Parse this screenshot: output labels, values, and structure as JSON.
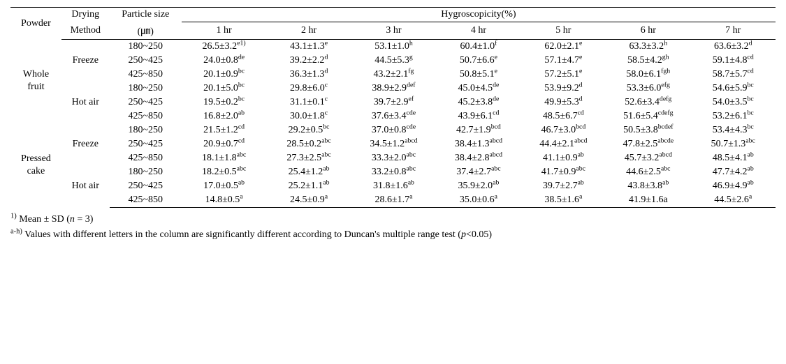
{
  "header": {
    "powder": "Powder",
    "drying": "Drying",
    "method": "Method",
    "particle": "Particle size",
    "particle_unit": "(㎛)",
    "hygro": "Hygroscopicity(%)",
    "hrs": [
      "1 hr",
      "2 hr",
      "3 hr",
      "4 hr",
      "5 hr",
      "6 hr",
      "7 hr"
    ]
  },
  "groups": [
    {
      "powder": "Whole fruit",
      "methods": [
        {
          "name": "Freeze",
          "rows": [
            {
              "size": "180~250",
              "v": [
                {
                  "m": "26.5±3.2",
                  "s": "e1)"
                },
                {
                  "m": "43.1±1.3",
                  "s": "e"
                },
                {
                  "m": "53.1±1.0",
                  "s": "h"
                },
                {
                  "m": "60.4±1.0",
                  "s": "f"
                },
                {
                  "m": "62.0±2.1",
                  "s": "e"
                },
                {
                  "m": "63.3±3.2",
                  "s": "h"
                },
                {
                  "m": "63.6±3.2",
                  "s": "d"
                }
              ]
            },
            {
              "size": "250~425",
              "v": [
                {
                  "m": "24.0±0.8",
                  "s": "de"
                },
                {
                  "m": "39.2±2.2",
                  "s": "d"
                },
                {
                  "m": "44.5±5.3",
                  "s": "g"
                },
                {
                  "m": "50.7±6.6",
                  "s": "e"
                },
                {
                  "m": "57.1±4.7",
                  "s": "e"
                },
                {
                  "m": "58.5±4.2",
                  "s": "gh"
                },
                {
                  "m": "59.1±4.8",
                  "s": "cd"
                }
              ]
            },
            {
              "size": "425~850",
              "v": [
                {
                  "m": "20.1±0.9",
                  "s": "bc"
                },
                {
                  "m": "36.3±1.3",
                  "s": "d"
                },
                {
                  "m": "43.2±2.1",
                  "s": "fg"
                },
                {
                  "m": "50.8±5.1",
                  "s": "e"
                },
                {
                  "m": "57.2±5.1",
                  "s": "e"
                },
                {
                  "m": "58.0±6.1",
                  "s": "fgh"
                },
                {
                  "m": "58.7±5.7",
                  "s": "cd"
                }
              ]
            }
          ]
        },
        {
          "name": "Hot air",
          "rows": [
            {
              "size": "180~250",
              "v": [
                {
                  "m": "20.1±5.0",
                  "s": "bc"
                },
                {
                  "m": "29.8±6.0",
                  "s": "c"
                },
                {
                  "m": "38.9±2.9",
                  "s": "def"
                },
                {
                  "m": "45.0±4.5",
                  "s": "de"
                },
                {
                  "m": "53.9±9.2",
                  "s": "d"
                },
                {
                  "m": "53.3±6.0",
                  "s": "efg"
                },
                {
                  "m": "54.6±5.9",
                  "s": "bc"
                }
              ]
            },
            {
              "size": "250~425",
              "v": [
                {
                  "m": "19.5±0.2",
                  "s": "bc"
                },
                {
                  "m": "31.1±0.1",
                  "s": "c"
                },
                {
                  "m": "39.7±2.9",
                  "s": "ef"
                },
                {
                  "m": "45.2±3.8",
                  "s": "de"
                },
                {
                  "m": "49.9±5.3",
                  "s": "d"
                },
                {
                  "m": "52.6±3.4",
                  "s": "defg"
                },
                {
                  "m": "54.0±3.5",
                  "s": "bc"
                }
              ]
            },
            {
              "size": "425~850",
              "v": [
                {
                  "m": "16.8±2.0",
                  "s": "ab"
                },
                {
                  "m": "30.0±1.8",
                  "s": "c"
                },
                {
                  "m": "37.6±3.4",
                  "s": "cde"
                },
                {
                  "m": "43.9±6.1",
                  "s": "cd"
                },
                {
                  "m": "48.5±6.7",
                  "s": "cd"
                },
                {
                  "m": "51.6±5.4",
                  "s": "cdefg"
                },
                {
                  "m": "53.2±6.1",
                  "s": "bc"
                }
              ]
            }
          ]
        }
      ]
    },
    {
      "powder": "Pressed cake",
      "methods": [
        {
          "name": "Freeze",
          "rows": [
            {
              "size": "180~250",
              "v": [
                {
                  "m": "21.5±1.2",
                  "s": "cd"
                },
                {
                  "m": "29.2±0.5",
                  "s": "bc"
                },
                {
                  "m": "37.0±0.8",
                  "s": "cde"
                },
                {
                  "m": "42.7±1.9",
                  "s": "bcd"
                },
                {
                  "m": "46.7±3.0",
                  "s": "bcd"
                },
                {
                  "m": "50.5±3.8",
                  "s": "bcdef"
                },
                {
                  "m": "53.4±4.3",
                  "s": "bc"
                }
              ]
            },
            {
              "size": "250~425",
              "v": [
                {
                  "m": "20.9±0.7",
                  "s": "cd"
                },
                {
                  "m": "28.5±0.2",
                  "s": "abc"
                },
                {
                  "m": "34.5±1.2",
                  "s": "abcd"
                },
                {
                  "m": "38.4±1.3",
                  "s": "abcd"
                },
                {
                  "m": "44.4±2.1",
                  "s": "abcd"
                },
                {
                  "m": "47.8±2.5",
                  "s": "abcde"
                },
                {
                  "m": "50.7±1.3",
                  "s": "abc"
                }
              ]
            },
            {
              "size": "425~850",
              "v": [
                {
                  "m": "18.1±1.8",
                  "s": "abc"
                },
                {
                  "m": "27.3±2.5",
                  "s": "abc"
                },
                {
                  "m": "33.3±2.0",
                  "s": "abc"
                },
                {
                  "m": "38.4±2.8",
                  "s": "abcd"
                },
                {
                  "m": "41.1±0.9",
                  "s": "ab"
                },
                {
                  "m": "45.7±3.2",
                  "s": "abcd"
                },
                {
                  "m": "48.5±4.1",
                  "s": "ab"
                }
              ]
            }
          ]
        },
        {
          "name": "Hot air",
          "rows": [
            {
              "size": "180~250",
              "v": [
                {
                  "m": "18.2±0.5",
                  "s": "abc"
                },
                {
                  "m": "25.4±1.2",
                  "s": "ab"
                },
                {
                  "m": "33.2±0.8",
                  "s": "abc"
                },
                {
                  "m": "37.4±2.7",
                  "s": "abc"
                },
                {
                  "m": "41.7±0.9",
                  "s": "abc"
                },
                {
                  "m": "44.6±2.5",
                  "s": "abc"
                },
                {
                  "m": "47.7±4.2",
                  "s": "ab"
                }
              ]
            },
            {
              "size": "250~425",
              "v": [
                {
                  "m": "17.0±0.5",
                  "s": "ab"
                },
                {
                  "m": "25.2±1.1",
                  "s": "ab"
                },
                {
                  "m": "31.8±1.6",
                  "s": "ab"
                },
                {
                  "m": "35.9±2.0",
                  "s": "ab"
                },
                {
                  "m": "39.7±2.7",
                  "s": "ab"
                },
                {
                  "m": "43.8±3.8",
                  "s": "ab"
                },
                {
                  "m": "46.9±4.9",
                  "s": "ab"
                }
              ]
            },
            {
              "size": "425~850",
              "v": [
                {
                  "m": "14.8±0.5",
                  "s": "a"
                },
                {
                  "m": "24.5±0.9",
                  "s": "a"
                },
                {
                  "m": "28.6±1.7",
                  "s": "a"
                },
                {
                  "m": "35.0±0.6",
                  "s": "a"
                },
                {
                  "m": "38.5±1.6",
                  "s": "a"
                },
                {
                  "m": "41.9±1.6a",
                  "s": ""
                },
                {
                  "m": "44.5±2.6",
                  "s": "a"
                }
              ]
            }
          ]
        }
      ]
    }
  ],
  "footnotes": {
    "f1_label": "1)",
    "f1_pre": " Mean ± SD (",
    "f1_n": "n",
    "f1_post": " = 3)",
    "f2_label": "a-h)",
    "f2_text_pre": " Values with different letters in the column are significantly different according to Duncan's multiple range test (",
    "f2_p": "p",
    "f2_text_post": "<0.05)"
  }
}
